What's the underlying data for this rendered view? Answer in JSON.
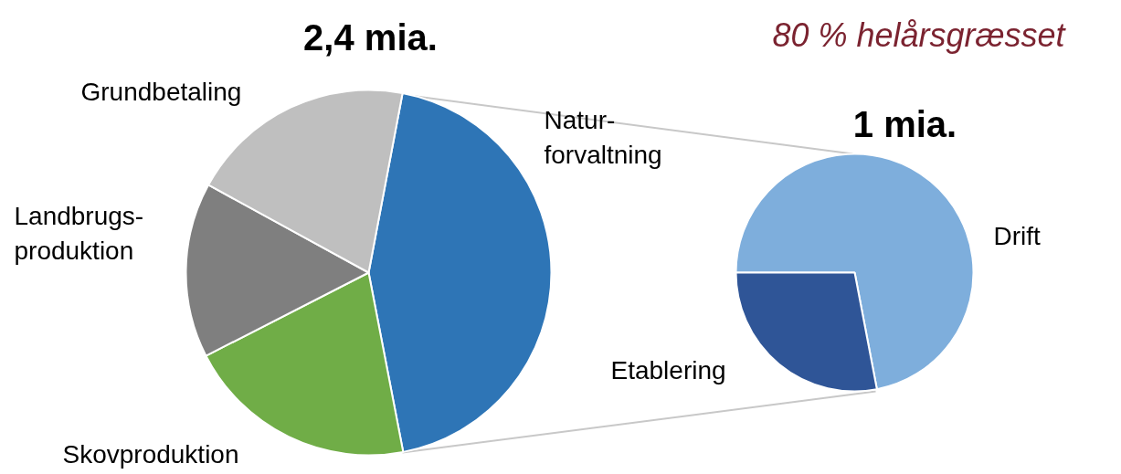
{
  "chart_data": [
    {
      "type": "pie",
      "title": "2,4 mia.",
      "categories": [
        "Natur-\nforvaltning",
        "Skovproduktion",
        "Landbrugs-\nproduktion",
        "Grundbetaling"
      ],
      "values": [
        44,
        20.5,
        15.5,
        20
      ],
      "colors": [
        "#2e75b6",
        "#70ad47",
        "#7f7f7f",
        "#bfbfbf"
      ]
    },
    {
      "type": "pie",
      "title": "1 mia.",
      "subtitle": "80 % helårsgræsset",
      "categories": [
        "Drift",
        "Etablering"
      ],
      "values": [
        72,
        28
      ],
      "colors": [
        "#7eaedc",
        "#2f5597"
      ]
    }
  ]
}
